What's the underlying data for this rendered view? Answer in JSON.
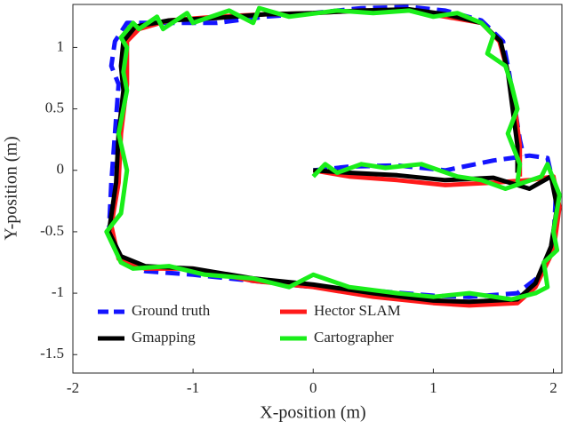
{
  "chart_data": {
    "type": "line",
    "xlabel": "X-position (m)",
    "ylabel": "Y-position (m)",
    "xlim": [
      -2,
      2.07
    ],
    "ylim": [
      -1.65,
      1.35
    ],
    "xticks": [
      -2,
      -1,
      0,
      1,
      2
    ],
    "yticks": [
      -1.5,
      -1,
      -0.5,
      0,
      0.5,
      1
    ],
    "legend": "lower center",
    "series": [
      {
        "name": "Ground truth",
        "color": "#1414ff",
        "dashed": true,
        "x": [
          0,
          0.3,
          0.7,
          1.1,
          1.5,
          1.8,
          1.95,
          2.02,
          2.0,
          1.9,
          1.7,
          1.3,
          1.0,
          0.5,
          0,
          -0.5,
          -1.0,
          -1.4,
          -1.6,
          -1.7,
          -1.68,
          -1.65,
          -1.62,
          -1.68,
          -1.65,
          -1.55,
          -1.2,
          -0.8,
          -0.4,
          0,
          0.4,
          0.8,
          1.1,
          1.4,
          1.58,
          1.63,
          1.68,
          1.72,
          1.75
        ],
        "values": [
          0,
          0.03,
          0.04,
          0.0,
          0.08,
          0.12,
          0.1,
          -0.2,
          -0.6,
          -0.85,
          -1.0,
          -1.03,
          -1.02,
          -0.98,
          -0.95,
          -0.9,
          -0.85,
          -0.82,
          -0.75,
          -0.5,
          -0.1,
          0.3,
          0.7,
          0.85,
          1.05,
          1.2,
          1.2,
          1.2,
          1.25,
          1.28,
          1.32,
          1.33,
          1.3,
          1.22,
          1.05,
          0.8,
          0.5,
          0.25,
          0.12
        ]
      },
      {
        "name": "Hector SLAM",
        "color": "#ff1a1a",
        "dashed": false,
        "x": [
          0,
          0.3,
          0.7,
          1.1,
          1.5,
          1.8,
          2.0,
          2.05,
          2.0,
          1.85,
          1.7,
          1.3,
          1.0,
          0.5,
          0,
          -0.5,
          -1.0,
          -1.4,
          -1.62,
          -1.68,
          -1.62,
          -1.6,
          -1.55,
          -1.55,
          -1.55,
          -1.45,
          -1.2,
          -0.8,
          -0.4,
          0,
          0.4,
          0.8,
          1.1,
          1.4,
          1.55,
          1.62,
          1.68,
          1.72,
          1.72
        ],
        "values": [
          0,
          -0.05,
          -0.08,
          -0.12,
          -0.1,
          -0.08,
          -0.05,
          -0.3,
          -0.65,
          -0.95,
          -1.08,
          -1.1,
          -1.08,
          -1.03,
          -0.95,
          -0.9,
          -0.8,
          -0.8,
          -0.72,
          -0.45,
          -0.1,
          0.3,
          0.7,
          0.85,
          1.05,
          1.15,
          1.22,
          1.25,
          1.27,
          1.28,
          1.3,
          1.3,
          1.25,
          1.2,
          1.05,
          0.8,
          0.5,
          0.2,
          -0.05
        ]
      },
      {
        "name": "Gmapping",
        "color": "#000000",
        "dashed": false,
        "x": [
          0,
          0.3,
          0.7,
          1.1,
          1.5,
          1.8,
          1.98,
          2.03,
          1.98,
          1.85,
          1.7,
          1.3,
          1.0,
          0.5,
          0,
          -0.5,
          -1.0,
          -1.4,
          -1.6,
          -1.7,
          -1.64,
          -1.62,
          -1.58,
          -1.6,
          -1.58,
          -1.48,
          -1.2,
          -0.8,
          -0.4,
          0,
          0.4,
          0.8,
          1.1,
          1.4,
          1.56,
          1.62,
          1.66,
          1.7,
          1.7
        ],
        "values": [
          0,
          -0.02,
          -0.04,
          -0.08,
          -0.06,
          -0.15,
          -0.05,
          -0.3,
          -0.62,
          -0.92,
          -1.05,
          -1.07,
          -1.06,
          -1.0,
          -0.93,
          -0.88,
          -0.8,
          -0.78,
          -0.7,
          -0.5,
          -0.1,
          0.3,
          0.65,
          0.85,
          1.05,
          1.17,
          1.22,
          1.24,
          1.27,
          1.28,
          1.3,
          1.31,
          1.27,
          1.2,
          1.05,
          0.8,
          0.5,
          0.2,
          -0.02
        ]
      },
      {
        "name": "Cartographer",
        "color": "#1aee1a",
        "dashed": false,
        "x": [
          0,
          0.1,
          0.2,
          0.4,
          0.6,
          0.9,
          1.2,
          1.4,
          1.6,
          1.9,
          1.95,
          2.05,
          2.0,
          2.03,
          1.92,
          1.95,
          1.85,
          1.65,
          1.3,
          1.0,
          0.7,
          0.3,
          0,
          -0.2,
          -0.5,
          -0.9,
          -1.2,
          -1.5,
          -1.6,
          -1.72,
          -1.6,
          -1.55,
          -1.62,
          -1.55,
          -1.58,
          -1.55,
          -1.6,
          -1.5,
          -1.45,
          -1.3,
          -1.25,
          -1.05,
          -1.0,
          -0.7,
          -0.5,
          -0.45,
          -0.2,
          0.2,
          0.5,
          0.8,
          1.0,
          1.2,
          1.4,
          1.5,
          1.45,
          1.6,
          1.65,
          1.7,
          1.62,
          1.72,
          1.7
        ],
        "values": [
          -0.05,
          0.05,
          -0.02,
          0.05,
          0.02,
          0.05,
          -0.05,
          -0.08,
          -0.15,
          -0.05,
          0.05,
          -0.2,
          -0.5,
          -0.65,
          -0.75,
          -0.95,
          -1.0,
          -1.05,
          -1.0,
          -1.03,
          -1.0,
          -0.95,
          -0.85,
          -0.95,
          -0.88,
          -0.85,
          -0.78,
          -0.8,
          -0.75,
          -0.5,
          -0.35,
          0.0,
          0.3,
          0.65,
          0.8,
          1.0,
          1.08,
          1.2,
          1.15,
          1.25,
          1.15,
          1.28,
          1.2,
          1.3,
          1.2,
          1.32,
          1.25,
          1.3,
          1.28,
          1.3,
          1.25,
          1.28,
          1.2,
          1.1,
          0.95,
          0.85,
          0.7,
          0.5,
          0.3,
          0.05,
          -0.1
        ]
      }
    ]
  }
}
